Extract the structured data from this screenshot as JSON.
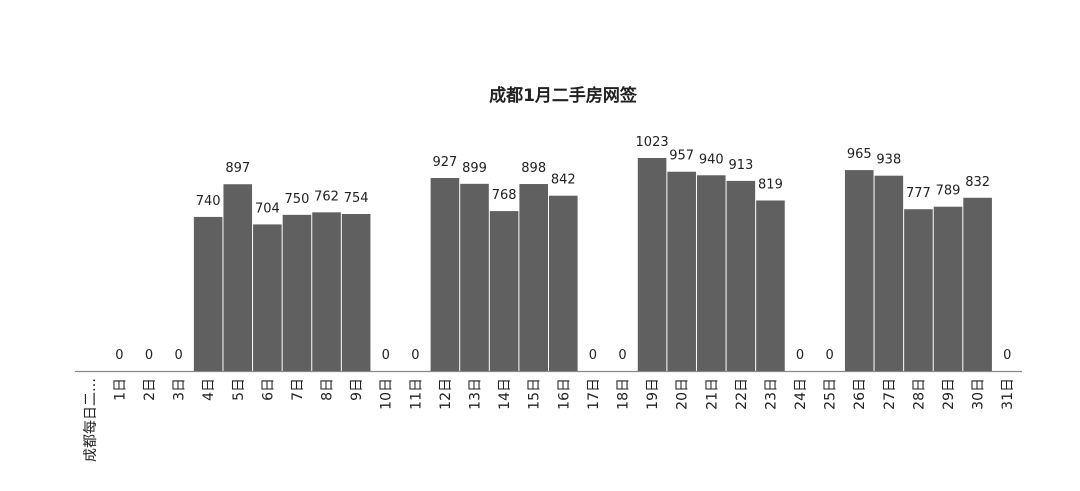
{
  "chart_data": {
    "type": "bar",
    "title": "成都1月二手房网签",
    "categories": [
      "成都每日二…",
      "1日",
      "2日",
      "3日",
      "4日",
      "5日",
      "6日",
      "7日",
      "8日",
      "9日",
      "10日",
      "11日",
      "12日",
      "13日",
      "14日",
      "15日",
      "16日",
      "17日",
      "18日",
      "19日",
      "20日",
      "21日",
      "22日",
      "23日",
      "24日",
      "25日",
      "26日",
      "27日",
      "28日",
      "29日",
      "30日",
      "31日"
    ],
    "values": [
      null,
      0,
      0,
      0,
      740,
      897,
      704,
      750,
      762,
      754,
      0,
      0,
      927,
      899,
      768,
      898,
      842,
      0,
      0,
      1023,
      957,
      940,
      913,
      819,
      0,
      0,
      965,
      938,
      777,
      789,
      832,
      0
    ],
    "color": "#606060"
  }
}
